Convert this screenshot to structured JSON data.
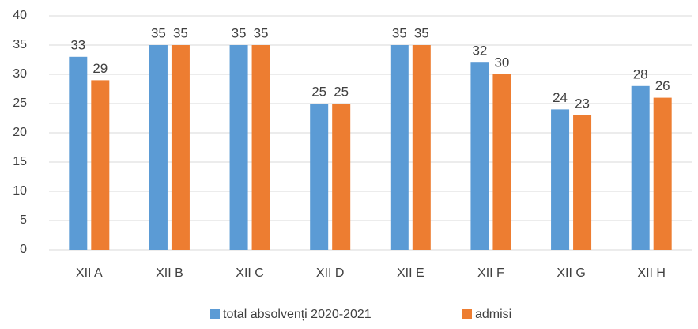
{
  "chart_data": {
    "type": "bar",
    "categories": [
      "XII A",
      "XII B",
      "XII C",
      "XII D",
      "XII E",
      "XII F",
      "XII G",
      "XII H"
    ],
    "series": [
      {
        "name": "total absolvenți 2020-2021",
        "color": "#5b9bd5",
        "values": [
          33,
          35,
          35,
          25,
          35,
          32,
          24,
          28
        ]
      },
      {
        "name": "admisi",
        "color": "#ed7d31",
        "values": [
          29,
          35,
          35,
          25,
          35,
          30,
          23,
          26
        ]
      }
    ],
    "ylim": [
      0,
      40
    ],
    "yticks": [
      0,
      5,
      10,
      15,
      20,
      25,
      30,
      35,
      40
    ],
    "grid": true,
    "legend": "bottom"
  }
}
